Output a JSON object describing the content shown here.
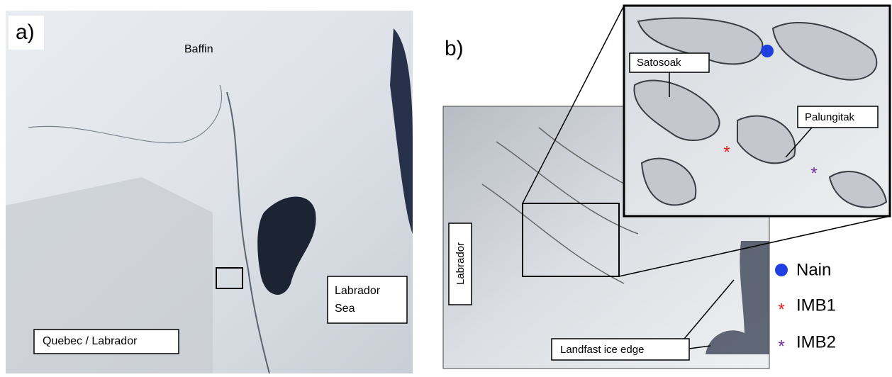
{
  "panel_a": {
    "label": "a)",
    "baffin": "Baffin",
    "labrador_sea": [
      "Labrador",
      "Sea"
    ],
    "quebec_labrador": "Quebec / Labrador"
  },
  "panel_b": {
    "label": "b)",
    "labrador": "Labrador",
    "satosoak": "Satosoak",
    "palungitak": "Palungitak",
    "landfast_ice_edge": "Landfast ice edge"
  },
  "legend": [
    "Nain",
    "IMB1",
    "IMB2"
  ]
}
